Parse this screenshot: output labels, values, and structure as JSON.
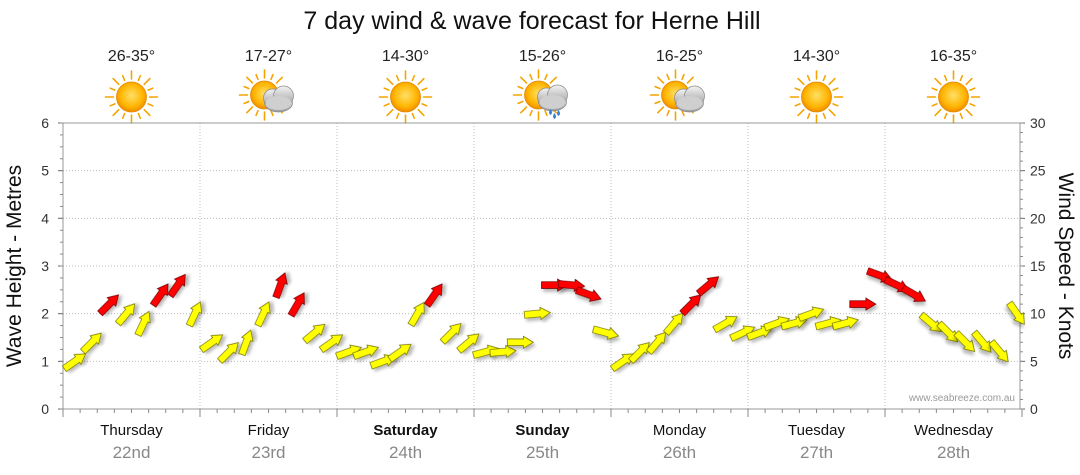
{
  "chart_data": {
    "type": "line",
    "title": "7 day wind & wave forecast for Herne Hill",
    "ylabel_left": "Wave Height - Metres",
    "ylabel_right": "Wind Speed - Knots",
    "ylim_left": [
      0,
      6
    ],
    "ylim_right": [
      0,
      30
    ],
    "yticks_left": [
      "0",
      "1",
      "2",
      "3",
      "4",
      "5",
      "6"
    ],
    "yticks_right": [
      "0",
      "5",
      "10",
      "15",
      "20",
      "25",
      "30"
    ],
    "grid": true,
    "watermark": "www.seabreeze.com.au",
    "days": [
      {
        "name": "Thursday",
        "date": "22nd",
        "bold": false,
        "temp": "26-35°",
        "weather": "sunny-icon"
      },
      {
        "name": "Friday",
        "date": "23rd",
        "bold": false,
        "temp": "17-27°",
        "weather": "partly-cloudy-icon"
      },
      {
        "name": "Saturday",
        "date": "24th",
        "bold": true,
        "temp": "14-30°",
        "weather": "sunny-icon"
      },
      {
        "name": "Sunday",
        "date": "25th",
        "bold": true,
        "temp": "15-26°",
        "weather": "showers-icon"
      },
      {
        "name": "Monday",
        "date": "26th",
        "bold": false,
        "temp": "16-25°",
        "weather": "partly-cloudy-icon"
      },
      {
        "name": "Tuesday",
        "date": "27th",
        "bold": false,
        "temp": "14-30°",
        "weather": "sunny-icon"
      },
      {
        "name": "Wednesday",
        "date": "28th",
        "bold": false,
        "temp": "16-35°",
        "weather": "sunny-icon"
      }
    ],
    "series": [
      {
        "name": "Wind Speed",
        "units": "knots",
        "x_hours": [
          0,
          3,
          6,
          9,
          12,
          15,
          18,
          21,
          24,
          27,
          30,
          33,
          36,
          39,
          42,
          45,
          48,
          51,
          54,
          57,
          60,
          63,
          66,
          69,
          72,
          75,
          78,
          81,
          84,
          87,
          90,
          93,
          96,
          99,
          102,
          105,
          108,
          111,
          114,
          117,
          120,
          123,
          126,
          129,
          132,
          135,
          138,
          141,
          144,
          147,
          150,
          153,
          156,
          159,
          162,
          165
        ],
        "values": [
          5,
          7,
          11,
          10,
          9,
          12,
          13,
          10,
          7,
          6,
          7,
          10,
          13,
          11,
          8,
          7,
          6,
          6,
          5,
          6,
          10,
          12,
          8,
          7,
          6,
          6,
          7,
          10,
          13,
          13,
          12,
          8,
          5,
          6,
          7,
          9,
          11,
          13,
          9,
          8,
          8,
          9,
          9,
          10,
          9,
          9,
          11,
          14,
          13,
          12,
          9,
          8,
          7,
          7,
          6,
          10
        ],
        "directions_deg": [
          235,
          225,
          225,
          220,
          205,
          215,
          215,
          205,
          235,
          225,
          200,
          205,
          200,
          210,
          230,
          235,
          250,
          250,
          250,
          235,
          210,
          215,
          225,
          230,
          255,
          265,
          270,
          265,
          270,
          275,
          290,
          285,
          235,
          225,
          220,
          220,
          225,
          230,
          240,
          245,
          250,
          250,
          255,
          250,
          255,
          255,
          270,
          290,
          295,
          300,
          310,
          315,
          315,
          320,
          320,
          325
        ],
        "color_rule": "red above 10 knots, yellow below"
      }
    ]
  }
}
